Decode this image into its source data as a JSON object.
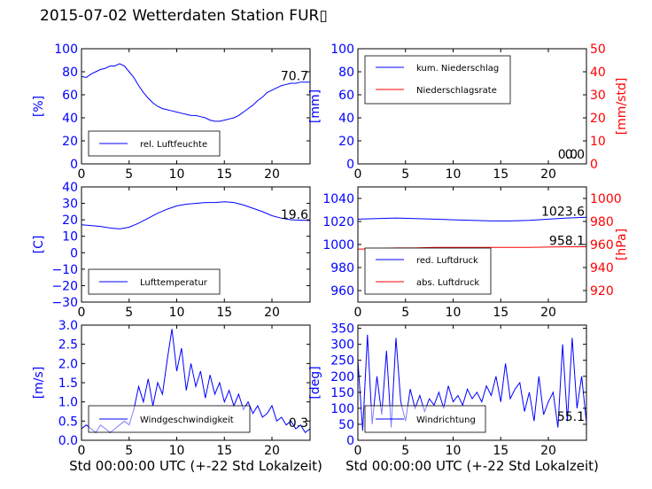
{
  "title": "2015-07-02 Wetterdaten Station FUR▯",
  "colors": {
    "left_axis": "#0000ff",
    "right_axis": "#ff0000",
    "series_blue": "#0000ff",
    "series_red": "#ff0000",
    "windspeed_light": "#8888ff"
  },
  "xlabel": "Std 00:00:00 UTC (+-22 Std Lokalzeit)",
  "chart_data": [
    {
      "id": "humidity",
      "type": "line",
      "xlim": [
        0,
        24
      ],
      "ylim": [
        0,
        100
      ],
      "xticks": [
        "0",
        "5",
        "10",
        "15",
        "20"
      ],
      "yticks": [
        "0",
        "20",
        "40",
        "60",
        "80",
        "100"
      ],
      "ylabel": "[%]",
      "legend": [
        "rel. Luftfeuchte"
      ],
      "legend_position": "lower-left",
      "annotation": "70.7",
      "series": [
        {
          "name": "rel. Luftfeuchte",
          "color": "#0000ff",
          "x": [
            0,
            0.5,
            1,
            1.5,
            2,
            2.5,
            3,
            3.5,
            4,
            4.5,
            5,
            5.5,
            6,
            6.5,
            7,
            7.5,
            8,
            8.5,
            9,
            9.5,
            10,
            10.5,
            11,
            11.5,
            12,
            12.5,
            13,
            13.5,
            14,
            14.5,
            15,
            15.5,
            16,
            16.5,
            17,
            17.5,
            18,
            18.5,
            19,
            19.5,
            20,
            20.5,
            21,
            21.5,
            22,
            22.5,
            23,
            23.5,
            24
          ],
          "y": [
            76,
            75,
            78,
            80,
            82,
            83,
            85,
            85,
            87,
            85,
            80,
            75,
            68,
            62,
            57,
            53,
            50,
            48,
            47,
            46,
            45,
            44,
            43,
            42,
            42,
            41,
            40,
            38,
            37,
            37,
            38,
            39,
            40,
            42,
            45,
            48,
            51,
            55,
            58,
            62,
            64,
            66,
            68,
            69,
            70,
            70,
            71,
            71,
            71
          ]
        }
      ]
    },
    {
      "id": "precipitation",
      "type": "line",
      "xlim": [
        0,
        24
      ],
      "ylim": [
        0,
        100
      ],
      "y2lim": [
        0,
        50
      ],
      "xticks": [
        "0",
        "5",
        "10",
        "15",
        "20"
      ],
      "yticks": [
        "0",
        "20",
        "40",
        "60",
        "80",
        "100"
      ],
      "y2ticks": [
        "0",
        "10",
        "20",
        "30",
        "40",
        "50"
      ],
      "ylabel": "[mm]",
      "y2label": "[mm/std]",
      "legend": [
        "kum. Niederschlag",
        "Niederschlagsrate"
      ],
      "legend_position": "upper-left",
      "annotation": "0.0",
      "annotation2": "0.0",
      "series": [
        {
          "name": "kum. Niederschlag",
          "color": "#0000ff",
          "axis": "left",
          "x": [
            0,
            24
          ],
          "y": [
            0,
            0
          ]
        },
        {
          "name": "Niederschlagsrate",
          "color": "#ff0000",
          "axis": "right",
          "x": [
            0,
            24
          ],
          "y": [
            0,
            0
          ]
        }
      ]
    },
    {
      "id": "temperature",
      "type": "line",
      "xlim": [
        0,
        24
      ],
      "ylim": [
        -30,
        40
      ],
      "xticks": [
        "0",
        "5",
        "10",
        "15",
        "20"
      ],
      "yticks": [
        "−30",
        "−20",
        "−10",
        "0",
        "10",
        "20",
        "30",
        "40"
      ],
      "ylabel": "[C]",
      "legend": [
        "Lufttemperatur"
      ],
      "legend_position": "lower-left",
      "annotation": "19.6",
      "series": [
        {
          "name": "Lufttemperatur",
          "color": "#0000ff",
          "x": [
            0,
            1,
            2,
            3,
            4,
            5,
            6,
            7,
            8,
            9,
            10,
            11,
            12,
            13,
            14,
            15,
            16,
            17,
            18,
            19,
            20,
            21,
            22,
            23,
            24
          ],
          "y": [
            17,
            16.5,
            16,
            15,
            14.5,
            15.5,
            18,
            21,
            24,
            26.5,
            28.5,
            29.5,
            30,
            30.5,
            30.5,
            31,
            30.5,
            29,
            27,
            25,
            22.5,
            21,
            20,
            19.8,
            19.6
          ]
        }
      ]
    },
    {
      "id": "pressure",
      "type": "line",
      "xlim": [
        0,
        24
      ],
      "ylim": [
        950,
        1050
      ],
      "y2lim": [
        910,
        1010
      ],
      "xticks": [
        "0",
        "5",
        "10",
        "15",
        "20"
      ],
      "yticks": [
        "960",
        "980",
        "1000",
        "1020",
        "1040"
      ],
      "y2ticks": [
        "920",
        "940",
        "960",
        "980",
        "1000"
      ],
      "y2label": "[hPa]",
      "legend": [
        "red. Luftdruck",
        "abs. Luftdruck"
      ],
      "legend_position": "lower-left",
      "annotation": "1023.6",
      "annotation2": "958.1",
      "series": [
        {
          "name": "red. Luftdruck",
          "color": "#0000ff",
          "axis": "left",
          "x": [
            0,
            2,
            4,
            6,
            8,
            10,
            12,
            14,
            16,
            18,
            20,
            22,
            24
          ],
          "y": [
            1022,
            1022.5,
            1023,
            1022.5,
            1022,
            1021.5,
            1021,
            1020.5,
            1020.5,
            1021,
            1022,
            1023,
            1023.6
          ]
        },
        {
          "name": "abs. Luftdruck",
          "color": "#ff0000",
          "axis": "right",
          "x": [
            0,
            2,
            4,
            6,
            8,
            10,
            12,
            14,
            16,
            18,
            20,
            22,
            24
          ],
          "y": [
            956,
            956.5,
            957,
            957,
            957.5,
            957.5,
            957.5,
            957.5,
            957.5,
            957.5,
            957.8,
            958,
            958.1
          ]
        }
      ]
    },
    {
      "id": "windspeed",
      "type": "line",
      "xlim": [
        0,
        24
      ],
      "ylim": [
        0,
        3
      ],
      "xticks": [
        "0",
        "5",
        "10",
        "15",
        "20"
      ],
      "yticks": [
        "0.0",
        "0.5",
        "1.0",
        "1.5",
        "2.0",
        "2.5",
        "3.0"
      ],
      "ylabel": "[m/s]",
      "legend": [
        "Windgeschwindigkeit"
      ],
      "legend_position": "lower-left",
      "annotation": "0.3",
      "series": [
        {
          "name": "Windgeschwindigkeit",
          "color": "#0000ff",
          "x": [
            0,
            0.5,
            1,
            1.5,
            2,
            2.5,
            3,
            3.5,
            4,
            4.5,
            5,
            5.5,
            6,
            6.5,
            7,
            7.5,
            8,
            8.5,
            9,
            9.5,
            10,
            10.5,
            11,
            11.5,
            12,
            12.5,
            13,
            13.5,
            14,
            14.5,
            15,
            15.5,
            16,
            16.5,
            17,
            17.5,
            18,
            18.5,
            19,
            19.5,
            20,
            20.5,
            21,
            21.5,
            22,
            22.5,
            23,
            23.5,
            24
          ],
          "y": [
            0.3,
            0.4,
            0.3,
            0.2,
            0.4,
            0.3,
            0.2,
            0.3,
            0.4,
            0.5,
            0.4,
            0.8,
            1.4,
            1.0,
            1.6,
            0.9,
            1.5,
            1.2,
            2.1,
            2.9,
            1.8,
            2.4,
            1.3,
            2.0,
            1.4,
            1.8,
            1.1,
            1.7,
            1.2,
            1.5,
            1.0,
            1.3,
            0.9,
            1.2,
            0.8,
            1.0,
            0.7,
            0.9,
            0.6,
            0.7,
            0.9,
            0.5,
            0.6,
            0.4,
            0.5,
            0.3,
            0.4,
            0.2,
            0.3
          ]
        }
      ]
    },
    {
      "id": "winddirection",
      "type": "line",
      "xlim": [
        0,
        24
      ],
      "ylim": [
        0,
        360
      ],
      "xticks": [
        "0",
        "5",
        "10",
        "15",
        "20"
      ],
      "yticks": [
        "0",
        "50",
        "100",
        "150",
        "200",
        "250",
        "300",
        "350"
      ],
      "ylabel": "[deg]",
      "legend": [
        "Windrichtung"
      ],
      "legend_position": "lower-left",
      "annotation": "55.1",
      "series": [
        {
          "name": "Windrichtung",
          "color": "#0000ff",
          "x": [
            0,
            0.5,
            1,
            1.5,
            2,
            2.5,
            3,
            3.5,
            4,
            4.5,
            5,
            5.5,
            6,
            6.5,
            7,
            7.5,
            8,
            8.5,
            9,
            9.5,
            10,
            10.5,
            11,
            11.5,
            12,
            12.5,
            13,
            13.5,
            14,
            14.5,
            15,
            15.5,
            16,
            16.5,
            17,
            17.5,
            18,
            18.5,
            19,
            19.5,
            20,
            20.5,
            21,
            21.5,
            22,
            22.5,
            23,
            23.5,
            24
          ],
          "y": [
            250,
            30,
            330,
            50,
            200,
            80,
            280,
            40,
            320,
            120,
            60,
            160,
            100,
            140,
            90,
            130,
            110,
            150,
            100,
            170,
            120,
            140,
            110,
            160,
            130,
            150,
            120,
            170,
            140,
            200,
            120,
            240,
            130,
            160,
            180,
            90,
            150,
            60,
            200,
            80,
            120,
            150,
            40,
            300,
            60,
            320,
            100,
            200,
            55
          ]
        }
      ]
    }
  ]
}
